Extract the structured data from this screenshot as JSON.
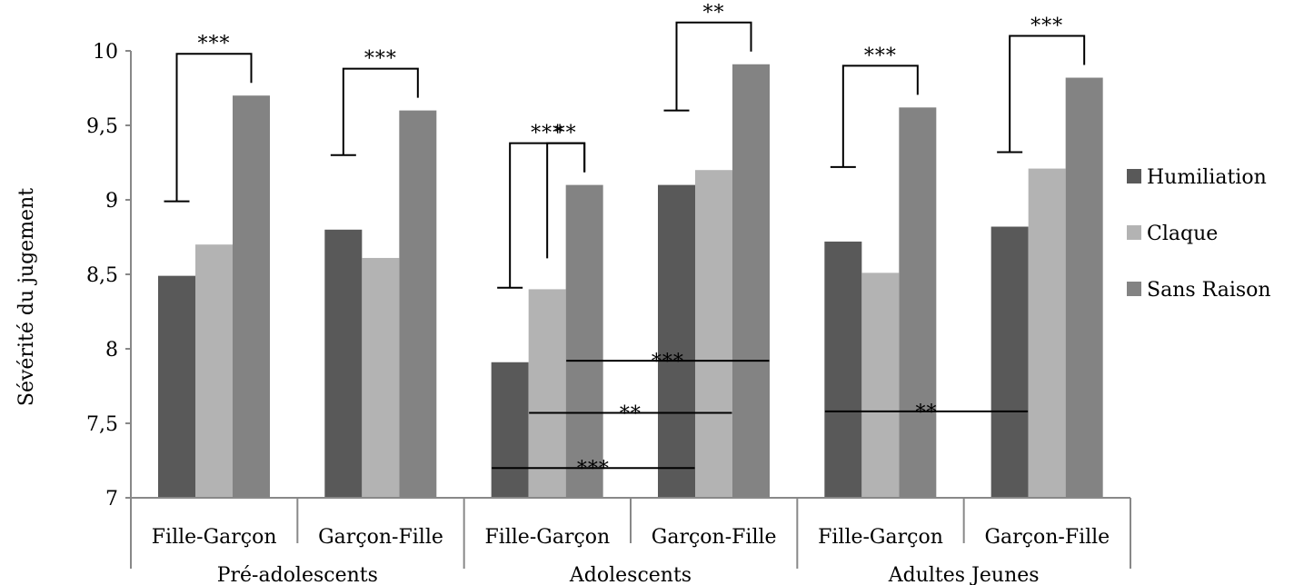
{
  "chart_data": {
    "type": "bar",
    "ylabel": "Sévérité du jugement",
    "xlabel": "",
    "ylim": [
      7,
      10
    ],
    "yticks": [
      7,
      7.5,
      8,
      8.5,
      9,
      9.5,
      10
    ],
    "ytick_labels": [
      "7",
      "7,5",
      "8",
      "8,5",
      "9",
      "9,5",
      "10"
    ],
    "categories": [
      "Fille-Garçon",
      "Garçon-Fille",
      "Fille-Garçon",
      "Garçon-Fille",
      "Fille-Garçon",
      "Garçon-Fille"
    ],
    "groups": [
      {
        "label": "Pré-adolescents",
        "span": [
          0,
          1
        ]
      },
      {
        "label": "Adolescents",
        "span": [
          2,
          3
        ]
      },
      {
        "label": "Adultes Jeunes",
        "span": [
          4,
          5
        ]
      }
    ],
    "series": [
      {
        "name": "Humiliation",
        "color": "#595959",
        "values": [
          8.49,
          8.8,
          7.91,
          9.1,
          8.72,
          8.82
        ]
      },
      {
        "name": "Claque",
        "color": "#b3b3b3",
        "values": [
          8.7,
          8.61,
          8.4,
          9.2,
          8.51,
          9.21
        ]
      },
      {
        "name": "Sans Raison",
        "color": "#838383",
        "values": [
          9.7,
          9.6,
          9.1,
          9.91,
          9.62,
          9.82
        ]
      }
    ],
    "legend": {
      "position": "right"
    },
    "grid": false,
    "significance": [
      {
        "label": "***",
        "kind": "bracket",
        "category": 0,
        "from_series": 0,
        "to_series": 2
      },
      {
        "label": "***",
        "kind": "bracket",
        "category": 1,
        "from_series": 0,
        "to_series": 2
      },
      {
        "label": "***",
        "kind": "bracket",
        "category": 2,
        "from_series": 0,
        "to_series": 2
      },
      {
        "label": "**",
        "kind": "bracket",
        "category": 2,
        "from_series": 1,
        "to_series": 2
      },
      {
        "label": "**",
        "kind": "bracket",
        "category": 3,
        "from_series": 0,
        "to_series": 2
      },
      {
        "label": "***",
        "kind": "bracket",
        "category": 4,
        "from_series": 0,
        "to_series": 2
      },
      {
        "label": "***",
        "kind": "bracket",
        "category": 5,
        "from_series": 0,
        "to_series": 2
      },
      {
        "label": "***",
        "kind": "line",
        "from_category": 2,
        "to_category": 3,
        "series": 2,
        "y": 7.92
      },
      {
        "label": "**",
        "kind": "line",
        "from_category": 2,
        "to_category": 3,
        "series": 1,
        "y": 7.57
      },
      {
        "label": "***",
        "kind": "line",
        "from_category": 2,
        "to_category": 3,
        "series": 0,
        "y": 7.2
      },
      {
        "label": "**",
        "kind": "line",
        "from_category": 4,
        "to_category": 5,
        "series": 0,
        "y": 7.58
      }
    ]
  }
}
